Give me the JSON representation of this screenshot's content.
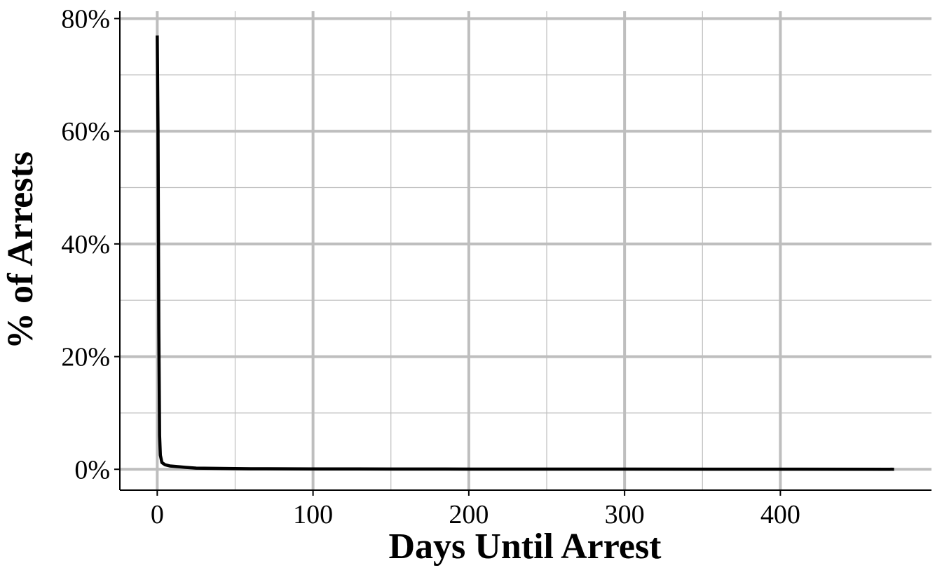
{
  "chart_data": {
    "type": "line",
    "title": "",
    "xlabel": "Days Until Arrest",
    "ylabel": "% of Arrests",
    "xlim": [
      -24,
      497
    ],
    "ylim": [
      -3.7,
      81.3
    ],
    "x_ticks": [
      0,
      100,
      200,
      300,
      400
    ],
    "x_tick_labels": [
      "0",
      "100",
      "200",
      "300",
      "400"
    ],
    "y_ticks": [
      0,
      20,
      40,
      60,
      80
    ],
    "y_tick_labels": [
      "0%",
      "20%",
      "40%",
      "60%",
      "80%"
    ],
    "grid": true,
    "series": [
      {
        "x": [
          0,
          0.5,
          1,
          1.5,
          2,
          3,
          5,
          8,
          12,
          18,
          25,
          40,
          60,
          100,
          150,
          200,
          300,
          400,
          473
        ],
        "y": [
          77,
          60,
          25,
          6,
          2.5,
          1.2,
          0.8,
          0.6,
          0.5,
          0.35,
          0.2,
          0.15,
          0.1,
          0.07,
          0.05,
          0.04,
          0.03,
          0.02,
          0.01
        ]
      }
    ]
  },
  "colors": {
    "background": "#ffffff",
    "grid": "#bebebe",
    "line": "#000000",
    "axis": "#000000"
  }
}
